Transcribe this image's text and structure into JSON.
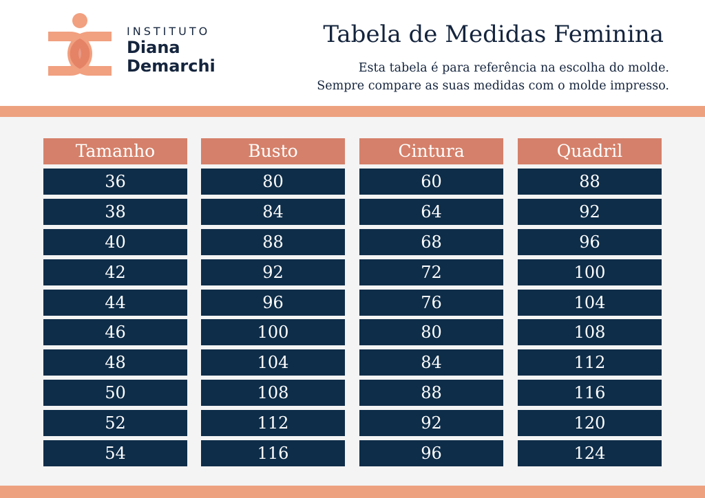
{
  "logo": {
    "line1": "INSTITUTO",
    "line2": "Diana",
    "line3": "Demarchi",
    "colors": {
      "orange": "#f1a080",
      "dark_orange": "#e07a5f",
      "navy": "#14243d"
    }
  },
  "header": {
    "title": "Tabela de Medidas Feminina",
    "subtitle_line1": "Esta tabela é para referência na escolha do molde.",
    "subtitle_line2": "Sempre compare as suas medidas com o molde impresso."
  },
  "table": {
    "columns": [
      {
        "header": "Tamanho",
        "values": [
          "36",
          "38",
          "40",
          "42",
          "44",
          "46",
          "48",
          "50",
          "52",
          "54"
        ]
      },
      {
        "header": "Busto",
        "values": [
          "80",
          "84",
          "88",
          "92",
          "96",
          "100",
          "104",
          "108",
          "112",
          "116"
        ]
      },
      {
        "header": "Cintura",
        "values": [
          "60",
          "64",
          "68",
          "72",
          "76",
          "80",
          "84",
          "88",
          "92",
          "96"
        ]
      },
      {
        "header": "Quadril",
        "values": [
          "88",
          "92",
          "96",
          "100",
          "104",
          "108",
          "112",
          "116",
          "120",
          "124"
        ]
      }
    ]
  },
  "colors": {
    "accent_band": "#eda17f",
    "header_cell": "#d5806a",
    "value_cell": "#0e2d49",
    "text_dark": "#14243d"
  }
}
